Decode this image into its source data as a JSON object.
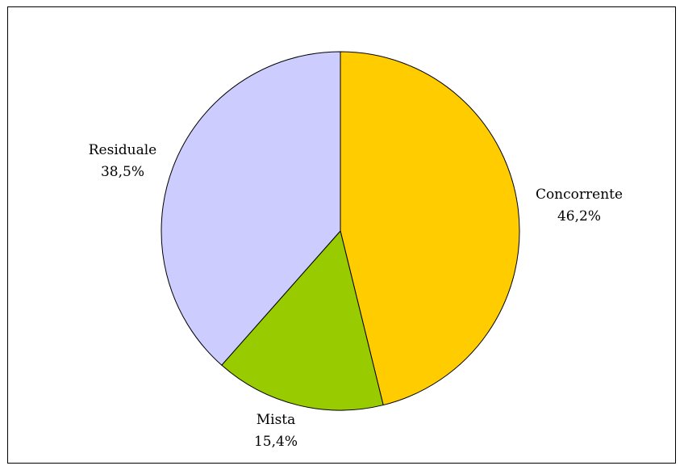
{
  "chart_data": {
    "type": "pie",
    "title": "",
    "start_angle_deg": 0,
    "direction": "clockwise",
    "slices": [
      {
        "label": "Concorrente",
        "value": 46.2,
        "value_label": "46,2%",
        "color": "#ffcc00"
      },
      {
        "label": "Mista",
        "value": 15.4,
        "value_label": "15,4%",
        "color": "#99cc00"
      },
      {
        "label": "Residuale",
        "value": 38.5,
        "value_label": "38,5%",
        "color": "#ccccff"
      }
    ],
    "legend": "none",
    "slice_outline_color": "#000000",
    "frame_border": true
  }
}
